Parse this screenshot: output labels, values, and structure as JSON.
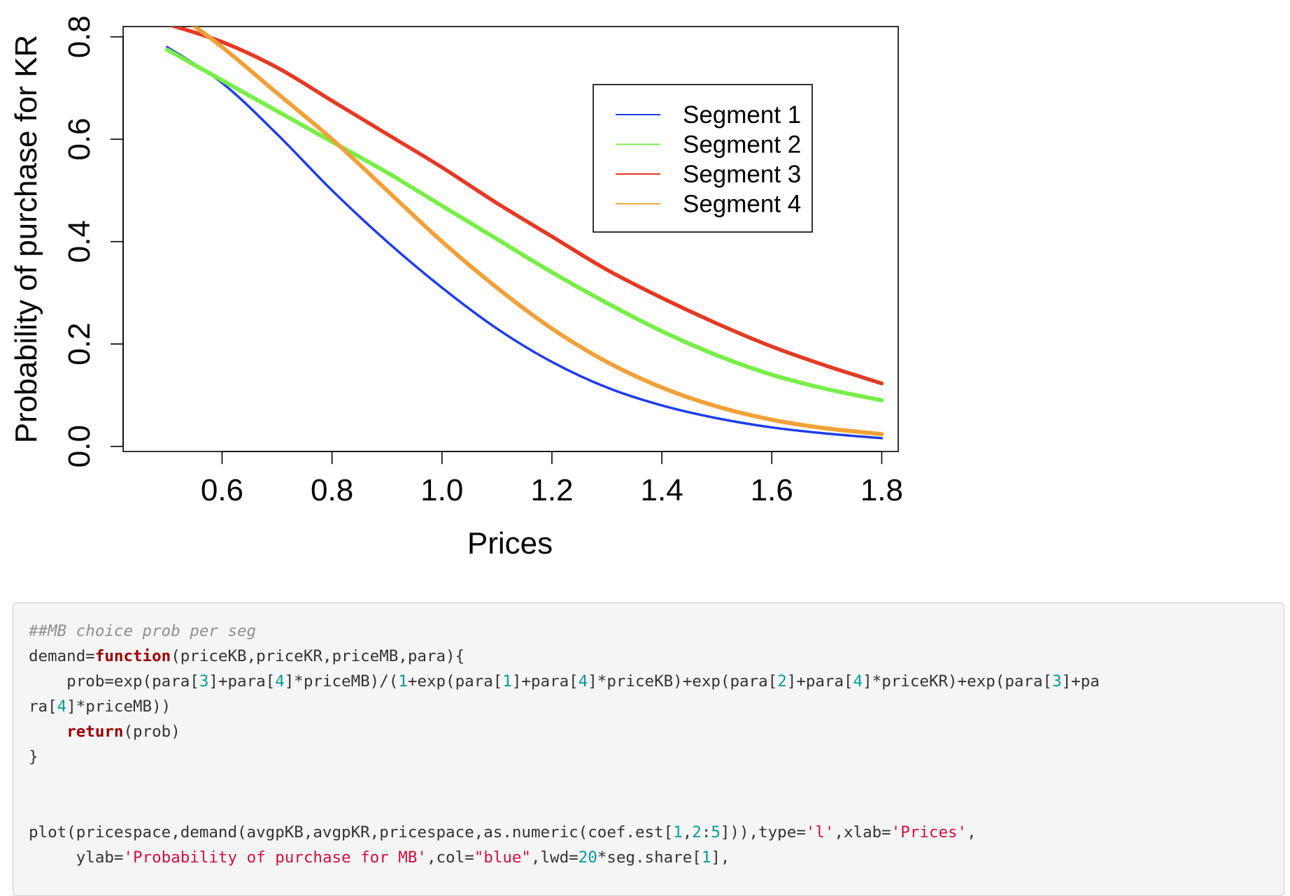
{
  "chart_data": {
    "type": "line",
    "title": "",
    "xlabel": "Prices",
    "ylabel": "Probability of purchase for KR",
    "xlim": [
      0.42,
      1.83
    ],
    "ylim": [
      -0.01,
      0.82
    ],
    "xticks": [
      "0.6",
      "0.8",
      "1.0",
      "1.2",
      "1.4",
      "1.6",
      "1.8"
    ],
    "yticks": [
      "0.0",
      "0.2",
      "0.4",
      "0.6",
      "0.8"
    ],
    "grid": false,
    "legend_position": "top-right",
    "x": [
      0.5,
      0.6,
      0.7,
      0.8,
      0.9,
      1.0,
      1.1,
      1.2,
      1.3,
      1.4,
      1.5,
      1.6,
      1.7,
      1.8
    ],
    "series": [
      {
        "name": "Segment 1",
        "color": "#1f3de8",
        "values": [
          0.78,
          0.71,
          0.61,
          0.5,
          0.4,
          0.31,
          0.23,
          0.165,
          0.115,
          0.08,
          0.055,
          0.037,
          0.025,
          0.016
        ]
      },
      {
        "name": "Segment 2",
        "color": "#78ee48",
        "values": [
          0.775,
          0.715,
          0.655,
          0.595,
          0.535,
          0.47,
          0.405,
          0.34,
          0.28,
          0.225,
          0.178,
          0.14,
          0.112,
          0.09
        ]
      },
      {
        "name": "Segment 3",
        "color": "#e33a25",
        "values": [
          0.825,
          0.79,
          0.74,
          0.675,
          0.61,
          0.545,
          0.475,
          0.41,
          0.345,
          0.29,
          0.24,
          0.195,
          0.157,
          0.123
        ]
      },
      {
        "name": "Segment 4",
        "color": "#f0a13a",
        "values": [
          0.86,
          0.78,
          0.69,
          0.6,
          0.5,
          0.4,
          0.31,
          0.23,
          0.165,
          0.115,
          0.078,
          0.052,
          0.035,
          0.024
        ]
      }
    ]
  },
  "code": {
    "lines": [
      [
        {
          "t": "comment",
          "s": "##MB choice prob per seg"
        }
      ],
      [
        {
          "t": "plain",
          "s": "demand="
        },
        {
          "t": "keyword",
          "s": "function"
        },
        {
          "t": "plain",
          "s": "(priceKB,priceKR,priceMB,para){"
        }
      ],
      [
        {
          "t": "plain",
          "s": "    prob=exp(para["
        },
        {
          "t": "num",
          "s": "3"
        },
        {
          "t": "plain",
          "s": "]+para["
        },
        {
          "t": "num",
          "s": "4"
        },
        {
          "t": "plain",
          "s": "]*priceMB)/("
        },
        {
          "t": "num",
          "s": "1"
        },
        {
          "t": "plain",
          "s": "+exp(para["
        },
        {
          "t": "num",
          "s": "1"
        },
        {
          "t": "plain",
          "s": "]+para["
        },
        {
          "t": "num",
          "s": "4"
        },
        {
          "t": "plain",
          "s": "]*priceKB)+exp(para["
        },
        {
          "t": "num",
          "s": "2"
        },
        {
          "t": "plain",
          "s": "]+para["
        },
        {
          "t": "num",
          "s": "4"
        },
        {
          "t": "plain",
          "s": "]*priceKR)+exp(para["
        },
        {
          "t": "num",
          "s": "3"
        },
        {
          "t": "plain",
          "s": "]+pa"
        }
      ],
      [
        {
          "t": "plain",
          "s": "ra["
        },
        {
          "t": "num",
          "s": "4"
        },
        {
          "t": "plain",
          "s": "]*priceMB))"
        }
      ],
      [
        {
          "t": "plain",
          "s": "    "
        },
        {
          "t": "keyword",
          "s": "return"
        },
        {
          "t": "plain",
          "s": "(prob)"
        }
      ],
      [
        {
          "t": "plain",
          "s": "}"
        }
      ],
      [],
      [],
      [
        {
          "t": "plain",
          "s": "plot(pricespace,demand(avgpKB,avgpKR,pricespace,as.numeric(coef.est["
        },
        {
          "t": "num",
          "s": "1"
        },
        {
          "t": "plain",
          "s": ","
        },
        {
          "t": "num",
          "s": "2"
        },
        {
          "t": "plain",
          "s": ":"
        },
        {
          "t": "num",
          "s": "5"
        },
        {
          "t": "plain",
          "s": "])),type="
        },
        {
          "t": "str",
          "s": "'l'"
        },
        {
          "t": "plain",
          "s": ",xlab="
        },
        {
          "t": "str",
          "s": "'Prices'"
        },
        {
          "t": "plain",
          "s": ","
        }
      ],
      [
        {
          "t": "plain",
          "s": "     ylab="
        },
        {
          "t": "str",
          "s": "'Probability of purchase for MB'"
        },
        {
          "t": "plain",
          "s": ",col="
        },
        {
          "t": "str",
          "s": "\"blue\""
        },
        {
          "t": "plain",
          "s": ",lwd="
        },
        {
          "t": "num",
          "s": "20"
        },
        {
          "t": "plain",
          "s": "*seg.share["
        },
        {
          "t": "num",
          "s": "1"
        },
        {
          "t": "plain",
          "s": "],"
        }
      ]
    ]
  }
}
